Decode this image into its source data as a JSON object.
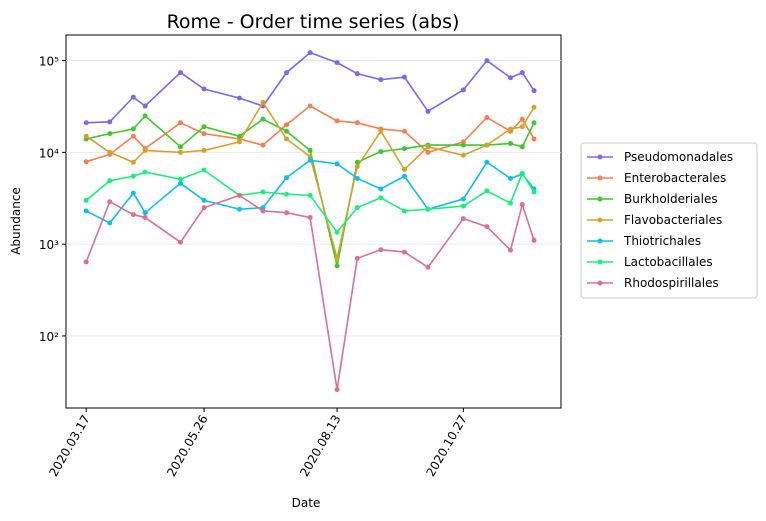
{
  "chart_data": {
    "type": "line",
    "title": "Rome - Order time series (abs)",
    "xlabel": "Date",
    "ylabel": "Abundance",
    "x": [
      "2020.03.17",
      "2020.03.31",
      "2020.04.14",
      "2020.04.21",
      "2020.05.12",
      "2020.05.26",
      "2020.06.16",
      "2020.06.30",
      "2020.07.14",
      "2020.07.28",
      "2020.08.13",
      "2020.08.25",
      "2020.09.08",
      "2020.09.22",
      "2020.10.06",
      "2020.10.27",
      "2020.11.10",
      "2020.11.24",
      "2020.12.01",
      "2020.12.08"
    ],
    "xlim": [
      "2020.03.05",
      "2020.12.24"
    ],
    "xticks": [
      "2020.03.17",
      "2020.05.26",
      "2020.08.13",
      "2020.10.27"
    ],
    "ylim": [
      16.4,
      190000
    ],
    "log_y": true,
    "grid": true,
    "legend": "outside right",
    "yticks": [
      {
        "value": 100,
        "label": "10²"
      },
      {
        "value": 1000,
        "label": "10³"
      },
      {
        "value": 10000,
        "label": "10⁴"
      },
      {
        "value": 100000,
        "label": "10⁵"
      }
    ],
    "series": [
      {
        "name": "Pseudomonadales",
        "color": "#7b68ee",
        "values": [
          21000,
          21500,
          40000,
          32000,
          74000,
          49000,
          39000,
          32000,
          74000,
          122000,
          95000,
          72000,
          62000,
          66000,
          28000,
          48000,
          100000,
          65000,
          74000,
          47000
        ]
      },
      {
        "name": "Enterobacterales",
        "color": "#f77f4f",
        "values": [
          7900,
          9500,
          15000,
          11000,
          21000,
          16000,
          14000,
          12000,
          20000,
          32000,
          22000,
          21000,
          18000,
          17000,
          10000,
          13000,
          24000,
          17000,
          23000,
          14000
        ]
      },
      {
        "name": "Burkholderiales",
        "color": "#3cc92c",
        "values": [
          14000,
          16000,
          18000,
          25000,
          11500,
          19000,
          15000,
          23000,
          17000,
          10500,
          580,
          7800,
          10200,
          11000,
          12000,
          12000,
          12000,
          12500,
          11500,
          21000
        ]
      },
      {
        "name": "Flavobacteriales",
        "color": "#d4a22a",
        "values": [
          15000,
          10000,
          7800,
          10500,
          10000,
          10500,
          13000,
          35000,
          14000,
          9000,
          700,
          7000,
          17000,
          6500,
          11500,
          9300,
          12000,
          18000,
          19000,
          31000
        ]
      },
      {
        "name": "Thiotrichales",
        "color": "#0abff0",
        "values": [
          2300,
          1700,
          3600,
          2200,
          4600,
          3000,
          2400,
          2500,
          5300,
          8200,
          7500,
          5200,
          4000,
          5500,
          2400,
          3100,
          7800,
          5200,
          5800,
          4000
        ]
      },
      {
        "name": "Lactobacillales",
        "color": "#1aef7c",
        "values": [
          3000,
          4900,
          5500,
          6100,
          5100,
          6400,
          3400,
          3700,
          3500,
          3400,
          1350,
          2500,
          3200,
          2300,
          2400,
          2600,
          3800,
          2800,
          5900,
          3700
        ]
      },
      {
        "name": "Rhodospirillales",
        "color": "#db7093",
        "values": [
          640,
          2900,
          2100,
          1950,
          1050,
          2500,
          3400,
          2300,
          2200,
          1950,
          26,
          700,
          870,
          820,
          560,
          1900,
          1550,
          860,
          2700,
          1100
        ]
      }
    ]
  }
}
